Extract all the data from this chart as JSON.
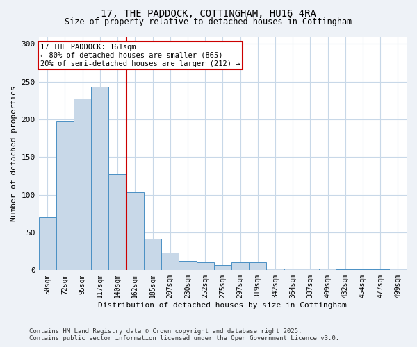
{
  "title1": "17, THE PADDOCK, COTTINGHAM, HU16 4RA",
  "title2": "Size of property relative to detached houses in Cottingham",
  "xlabel": "Distribution of detached houses by size in Cottingham",
  "ylabel": "Number of detached properties",
  "bar_labels": [
    "50sqm",
    "72sqm",
    "95sqm",
    "117sqm",
    "140sqm",
    "162sqm",
    "185sqm",
    "207sqm",
    "230sqm",
    "252sqm",
    "275sqm",
    "297sqm",
    "319sqm",
    "342sqm",
    "364sqm",
    "387sqm",
    "409sqm",
    "432sqm",
    "454sqm",
    "477sqm",
    "499sqm"
  ],
  "bar_values": [
    70,
    197,
    228,
    243,
    127,
    103,
    42,
    23,
    12,
    10,
    7,
    10,
    10,
    2,
    2,
    2,
    2,
    1,
    1,
    1,
    2
  ],
  "bar_color": "#c8d8e8",
  "bar_edge_color": "#4a90c4",
  "property_line_idx": 4.5,
  "annotation_title": "17 THE PADDOCK: 161sqm",
  "annotation_line1": "← 80% of detached houses are smaller (865)",
  "annotation_line2": "20% of semi-detached houses are larger (212) →",
  "annotation_box_color": "#cc0000",
  "ylim": [
    0,
    310
  ],
  "yticks": [
    0,
    50,
    100,
    150,
    200,
    250,
    300
  ],
  "footnote1": "Contains HM Land Registry data © Crown copyright and database right 2025.",
  "footnote2": "Contains public sector information licensed under the Open Government Licence v3.0.",
  "bg_color": "#eef2f7",
  "plot_bg_color": "#ffffff",
  "grid_color": "#c8d8e8"
}
